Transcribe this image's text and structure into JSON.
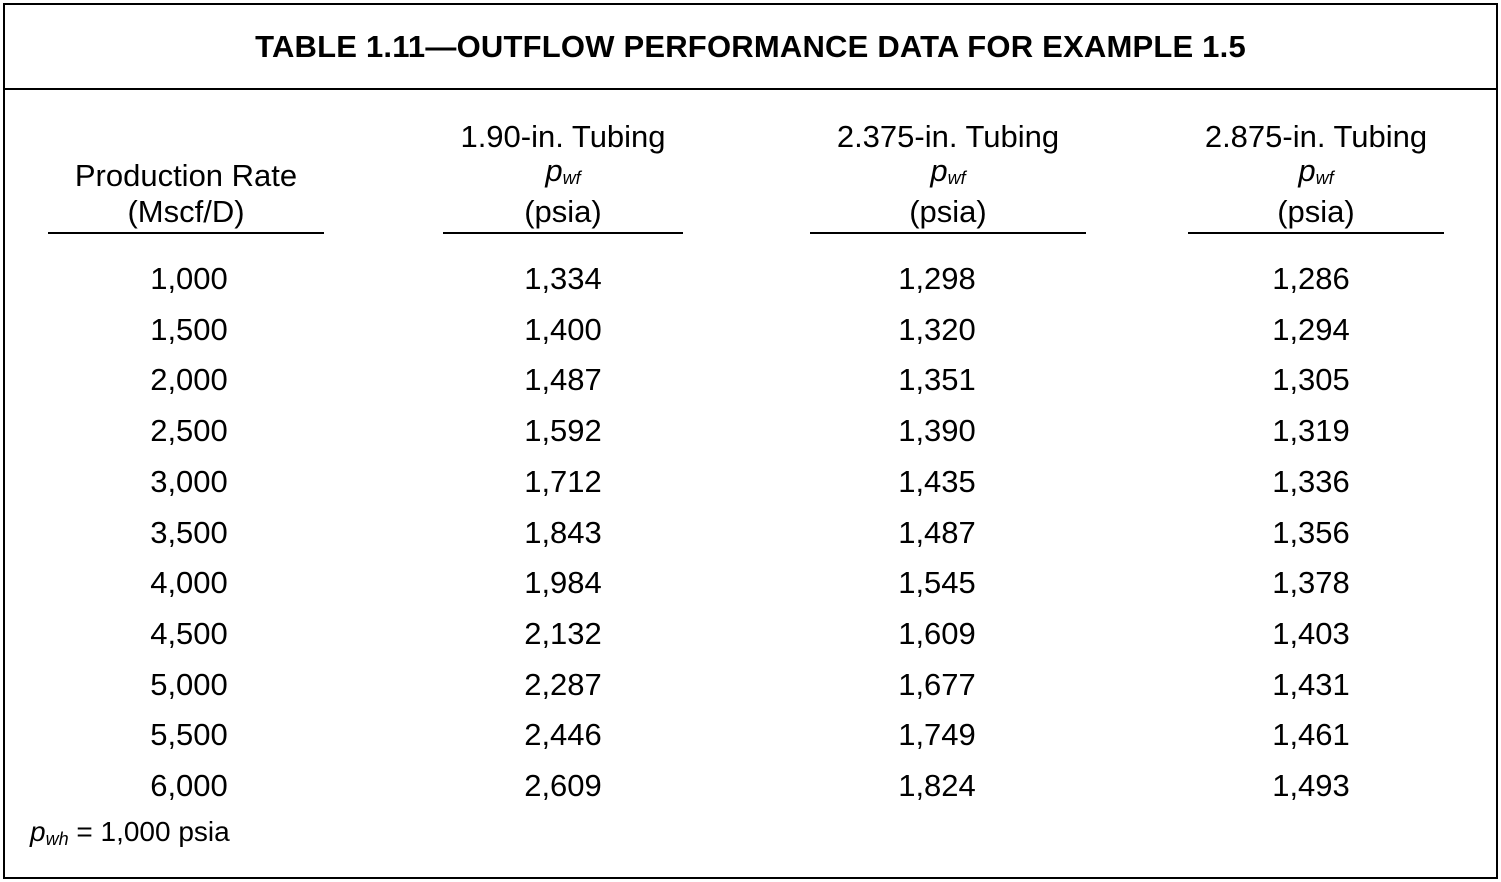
{
  "title": "TABLE 1.11—OUTFLOW PERFORMANCE DATA FOR EXAMPLE 1.5",
  "headers": [
    {
      "line1": "",
      "line2": "Production Rate",
      "line3": "(Mscf/D)"
    },
    {
      "line1": "1.90-in. Tubing",
      "sym_base": "p",
      "sym_sub": "wf",
      "line3": "(psia)"
    },
    {
      "line1": "2.375-in. Tubing",
      "sym_base": "p",
      "sym_sub": "wf",
      "line3": "(psia)"
    },
    {
      "line1": "2.875-in. Tubing",
      "sym_base": "p",
      "sym_sub": "wf",
      "line3": "(psia)"
    }
  ],
  "rows": [
    [
      "1,000",
      "1,334",
      "1,298",
      "1,286"
    ],
    [
      "1,500",
      "1,400",
      "1,320",
      "1,294"
    ],
    [
      "2,000",
      "1,487",
      "1,351",
      "1,305"
    ],
    [
      "2,500",
      "1,592",
      "1,390",
      "1,319"
    ],
    [
      "3,000",
      "1,712",
      "1,435",
      "1,336"
    ],
    [
      "3,500",
      "1,843",
      "1,487",
      "1,356"
    ],
    [
      "4,000",
      "1,984",
      "1,545",
      "1,378"
    ],
    [
      "4,500",
      "2,132",
      "1,609",
      "1,403"
    ],
    [
      "5,000",
      "2,287",
      "1,677",
      "1,431"
    ],
    [
      "5,500",
      "2,446",
      "1,749",
      "1,461"
    ],
    [
      "6,000",
      "2,609",
      "1,824",
      "1,493"
    ]
  ],
  "footnote": {
    "sym_base": "p",
    "sym_sub": "wh",
    "text": " = 1,000 psia"
  }
}
